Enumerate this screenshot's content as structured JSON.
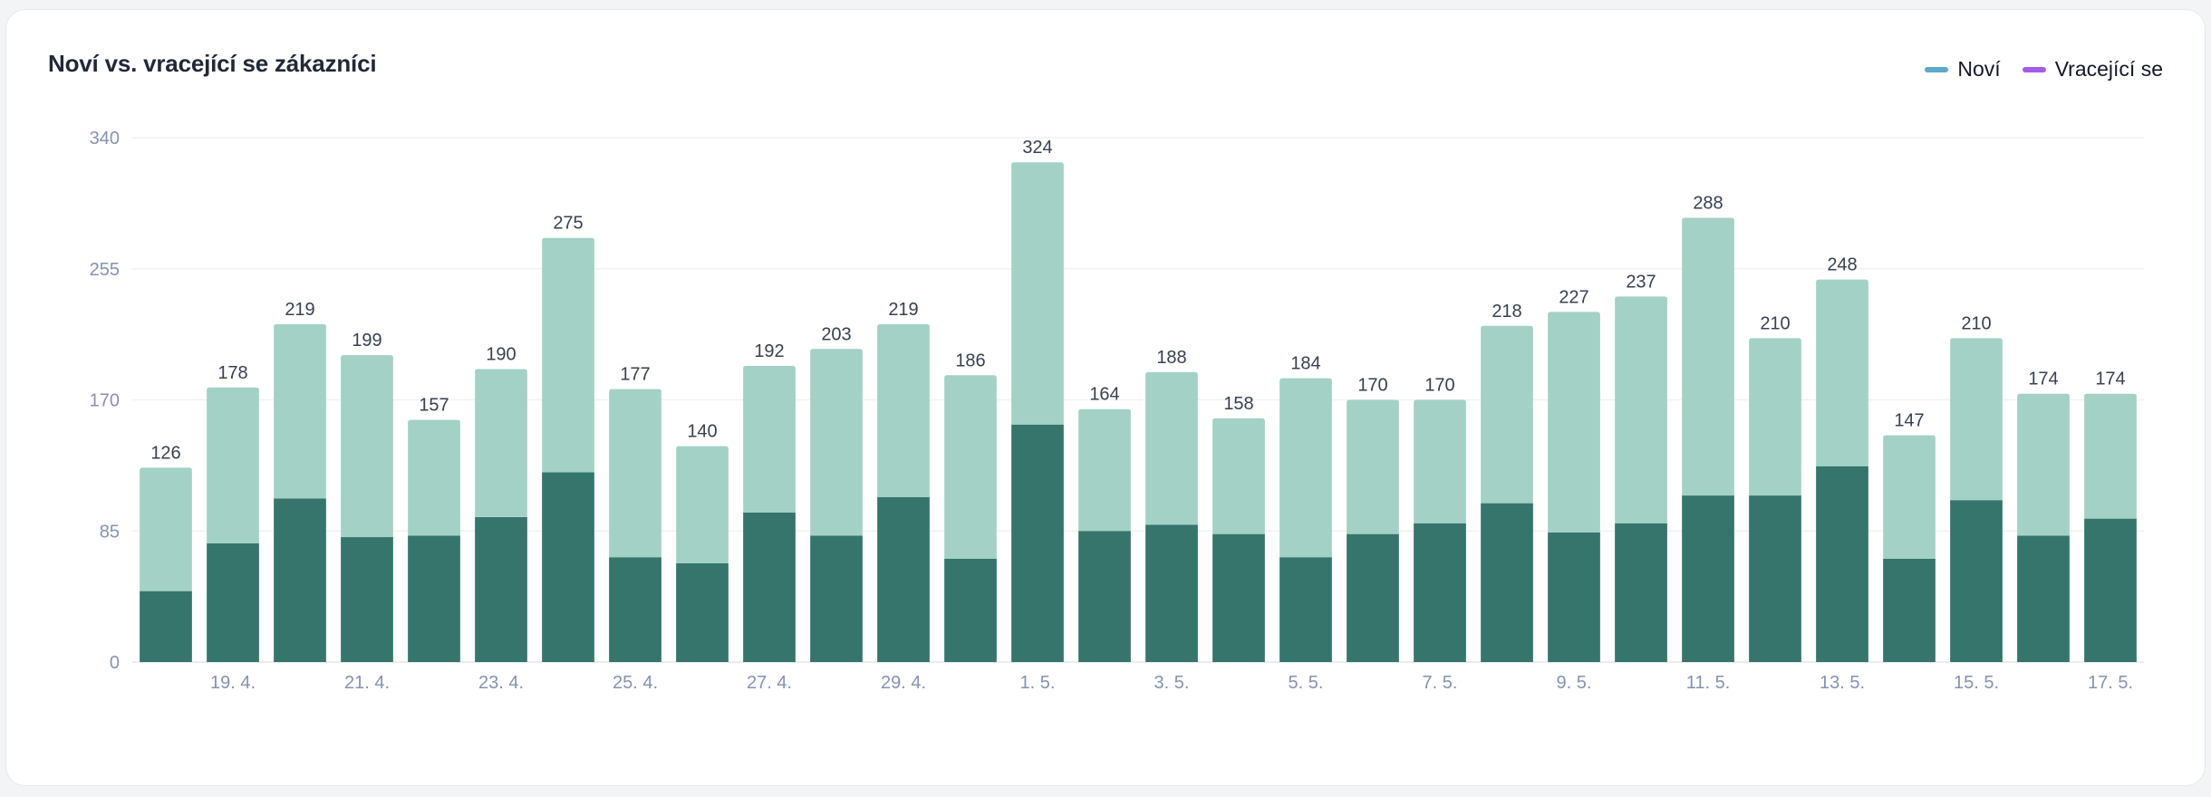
{
  "title": "Noví vs. vracející se zákazníci",
  "legend": {
    "items": [
      {
        "label": "Noví",
        "color": "#5aa9c9"
      },
      {
        "label": "Vracející se",
        "color": "#a35ce8"
      }
    ]
  },
  "chart_data": {
    "type": "bar",
    "stacked": true,
    "title": "Noví vs. vracející se zákazníci",
    "categories": [
      "18. 4.",
      "19. 4.",
      "20. 4.",
      "21. 4.",
      "22. 4.",
      "23. 4.",
      "24. 4.",
      "25. 4.",
      "26. 4.",
      "27. 4.",
      "28. 4.",
      "29. 4.",
      "30. 4.",
      "1. 5.",
      "2. 5.",
      "3. 5.",
      "4. 5.",
      "5. 5.",
      "6. 5.",
      "7. 5.",
      "8. 5.",
      "9. 5.",
      "10. 5.",
      "11. 5.",
      "12. 5.",
      "13. 5.",
      "14. 5.",
      "15. 5.",
      "16. 5.",
      "17. 5."
    ],
    "x_tick_labels": [
      "19. 4.",
      "21. 4.",
      "23. 4.",
      "25. 4.",
      "27. 4.",
      "29. 4.",
      "1. 5.",
      "3. 5.",
      "5. 5.",
      "7. 5.",
      "9. 5.",
      "11. 5.",
      "13. 5.",
      "15. 5.",
      "17. 5."
    ],
    "series": [
      {
        "name": "Noví",
        "color": "#35756c",
        "values": [
          46,
          77,
          106,
          81,
          82,
          94,
          123,
          68,
          64,
          97,
          82,
          107,
          67,
          154,
          85,
          89,
          83,
          68,
          83,
          90,
          103,
          84,
          90,
          108,
          108,
          127,
          67,
          105,
          82,
          93
        ]
      },
      {
        "name": "Vracející se",
        "color": "#a3d1c5",
        "values": [
          80,
          101,
          113,
          118,
          75,
          96,
          152,
          109,
          76,
          95,
          121,
          112,
          119,
          170,
          79,
          99,
          75,
          116,
          87,
          80,
          115,
          143,
          147,
          180,
          102,
          121,
          80,
          105,
          92,
          81
        ]
      }
    ],
    "totals": [
      126,
      178,
      219,
      199,
      157,
      190,
      275,
      177,
      140,
      192,
      203,
      219,
      186,
      324,
      164,
      188,
      158,
      184,
      170,
      170,
      218,
      227,
      237,
      288,
      210,
      248,
      147,
      210,
      174,
      174
    ],
    "ylim": [
      0,
      340
    ],
    "yticks": [
      0,
      85,
      170,
      255,
      340
    ],
    "grid": true,
    "legend_position": "top-right"
  }
}
